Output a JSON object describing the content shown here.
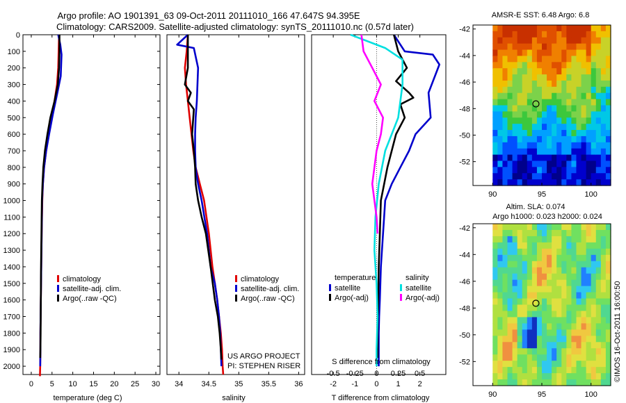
{
  "header": {
    "title_line1": "Argo profile: AO 1901391_63 09-Oct-2011 20111010_166 47.647S 94.395E",
    "title_line2": "Climatology: CARS2009. Satellite-adjusted climatology: synTS_20111010.nc (0.57d later)"
  },
  "chart_data": [
    {
      "type": "line",
      "name": "temperature-profile",
      "xlabel": "temperature (deg C)",
      "ylabel": "",
      "xlim": [
        -2,
        31
      ],
      "ylim": [
        0,
        2050
      ],
      "xticks": [
        0,
        5,
        10,
        15,
        20,
        25,
        30
      ],
      "yticks": [
        0,
        100,
        200,
        300,
        400,
        500,
        600,
        700,
        800,
        900,
        1000,
        1100,
        1200,
        1300,
        1400,
        1500,
        1600,
        1700,
        1800,
        1900,
        2000
      ],
      "legend": [
        "climatology",
        "satellite-adj. clim.",
        "Argo(..raw -QC)"
      ],
      "legend_colors": [
        "#e00000",
        "#0000cc",
        "#000000"
      ],
      "series": [
        {
          "name": "climatology",
          "color": "#e00000",
          "x": [
            6.7,
            6.6,
            6.5,
            6.2,
            5.6,
            4.9,
            4.2,
            3.6,
            3.1,
            2.8,
            2.65,
            2.5,
            2.4,
            2.35,
            2.3,
            2.25,
            2.2,
            2.2,
            2.15,
            2.1,
            2.1
          ],
          "y": [
            0,
            100,
            200,
            300,
            400,
            500,
            600,
            700,
            800,
            900,
            1000,
            1200,
            1400,
            1500,
            1600,
            1700,
            1800,
            1900,
            2000,
            2050,
            2060
          ]
        },
        {
          "name": "satellite-adj. clim.",
          "color": "#0000cc",
          "x": [
            6.5,
            7.0,
            7.3,
            7.1,
            6.3,
            5.2,
            4.3,
            3.6,
            3.1,
            2.8,
            2.6,
            2.5,
            2.4,
            2.35,
            2.3,
            2.25,
            2.2,
            2.2,
            2.15
          ],
          "y": [
            0,
            60,
            120,
            250,
            350,
            480,
            600,
            700,
            800,
            900,
            1000,
            1200,
            1400,
            1500,
            1600,
            1700,
            1800,
            1900,
            2000
          ]
        },
        {
          "name": "Argo(..raw -QC)",
          "color": "#000000",
          "x": [
            6.8,
            6.8,
            6.7,
            6.4,
            5.6,
            4.6,
            3.9,
            3.3,
            2.9,
            2.7,
            2.55,
            2.45,
            2.35,
            2.3,
            2.25,
            2.2,
            2.15
          ],
          "y": [
            0,
            100,
            200,
            300,
            400,
            500,
            600,
            700,
            800,
            900,
            1000,
            1200,
            1400,
            1600,
            1800,
            1900,
            1950
          ]
        }
      ]
    },
    {
      "type": "line",
      "name": "salinity-profile",
      "xlabel": "salinity",
      "xlim": [
        33.8,
        36.1
      ],
      "ylim": [
        0,
        2050
      ],
      "xticks": [
        34,
        34.5,
        35,
        35.5,
        36
      ],
      "legend": [
        "climatology",
        "satellite-adj. clim.",
        "Argo(..raw -QC)"
      ],
      "legend_colors": [
        "#e00000",
        "#0000cc",
        "#000000"
      ],
      "annotation_lines": [
        "US ARGO PROJECT",
        "PI: STEPHEN RISER"
      ],
      "series": [
        {
          "name": "climatology",
          "color": "#e00000",
          "x": [
            34.15,
            34.13,
            34.1,
            34.12,
            34.15,
            34.18,
            34.21,
            34.24,
            34.28,
            34.35,
            34.42,
            34.5,
            34.56,
            34.6,
            34.64,
            34.67,
            34.7,
            34.72,
            34.73,
            34.74
          ],
          "y": [
            0,
            100,
            200,
            300,
            400,
            500,
            600,
            700,
            800,
            900,
            1000,
            1200,
            1400,
            1500,
            1600,
            1700,
            1800,
            1900,
            2000,
            2050
          ]
        },
        {
          "name": "satellite-adj. clim.",
          "color": "#0000cc",
          "x": [
            34.15,
            33.97,
            34.25,
            34.32,
            34.3,
            34.28,
            34.27,
            34.27,
            34.28,
            34.32,
            34.38,
            34.47,
            34.53,
            34.6,
            34.64,
            34.67,
            34.69,
            34.7,
            34.71
          ],
          "y": [
            0,
            60,
            80,
            200,
            400,
            500,
            600,
            700,
            800,
            900,
            1000,
            1200,
            1400,
            1500,
            1600,
            1700,
            1800,
            1900,
            2000
          ]
        },
        {
          "name": "Argo(..raw -QC)",
          "color": "#000000",
          "x": [
            34.15,
            34.15,
            34.15,
            34.1,
            34.2,
            34.15,
            34.25,
            34.22,
            34.25,
            34.27,
            34.28,
            34.32,
            34.38,
            34.45,
            34.53,
            34.6,
            34.65,
            34.68,
            34.7,
            34.71
          ],
          "y": [
            0,
            100,
            200,
            300,
            350,
            400,
            450,
            600,
            700,
            800,
            900,
            1000,
            1100,
            1200,
            1400,
            1600,
            1700,
            1800,
            1900,
            1960
          ]
        }
      ]
    },
    {
      "type": "line",
      "name": "difference-profile",
      "xlabel": "T difference from climatology",
      "xlabel_top": "S difference from climatology",
      "xlim": [
        -3,
        3.2
      ],
      "ylim": [
        0,
        2050
      ],
      "xticks": [
        -2,
        -1,
        0,
        1,
        2
      ],
      "xticks_top": [
        "-0.5",
        "-0.25",
        "0",
        "0.25",
        "0.5"
      ],
      "legend_left_title": "temperature",
      "legend_right_title": "salinity",
      "legend_left": [
        "satellite",
        "Argo(-adj)"
      ],
      "legend_left_colors": [
        "#0000cc",
        "#000000"
      ],
      "legend_right": [
        "satellite",
        "Argo(-adj)"
      ],
      "legend_right_colors": [
        "#00e0e0",
        "#ff00ff"
      ],
      "series": [
        {
          "name": "satellite",
          "group": "temperature",
          "color": "#0000cc",
          "x": [
            0.8,
            1.3,
            2.6,
            2.9,
            2.4,
            2.5,
            1.8,
            1.5,
            1.1,
            0.7,
            0.4,
            0.3,
            0.2,
            0.15,
            0.12,
            0.1,
            0.1,
            0.1
          ],
          "y": [
            0,
            100,
            120,
            180,
            350,
            500,
            600,
            700,
            800,
            900,
            1000,
            1200,
            1400,
            1600,
            1700,
            1800,
            1900,
            2000
          ]
        },
        {
          "name": "Argo(-adj)",
          "group": "temperature",
          "color": "#000000",
          "x": [
            0.8,
            1.0,
            1.4,
            0.9,
            1.5,
            1.7,
            1.1,
            1.3,
            0.9,
            0.5,
            0.35,
            0.2,
            0.15,
            0.1,
            0.08,
            0.05,
            0.05
          ],
          "y": [
            0,
            100,
            200,
            280,
            350,
            380,
            420,
            500,
            600,
            800,
            900,
            1000,
            1200,
            1400,
            1600,
            1800,
            1950
          ]
        },
        {
          "name": "satellite",
          "group": "salinity",
          "color": "#00e0e0",
          "x": [
            -1.2,
            0.4,
            1.2,
            1.2,
            1.0,
            0.7,
            0.4,
            0.1,
            -0.05,
            -0.1,
            0.0,
            0.05,
            0.0,
            0.0
          ],
          "y": [
            0,
            80,
            150,
            300,
            500,
            600,
            700,
            900,
            1100,
            1300,
            1500,
            1700,
            1900,
            2000
          ]
        },
        {
          "name": "Argo(-adj)",
          "group": "salinity",
          "color": "#ff00ff",
          "x": [
            -0.7,
            -0.6,
            -0.2,
            0.2,
            -0.1,
            0.3,
            0.2,
            0.0,
            -0.1,
            -0.2,
            -0.1,
            0.0,
            0.05
          ],
          "y": [
            0,
            100,
            200,
            300,
            400,
            500,
            600,
            700,
            800,
            900,
            1000,
            1100,
            1200
          ]
        }
      ]
    }
  ],
  "maps": {
    "sst": {
      "title": "AMSR-E SST: 6.48 Argo: 6.8",
      "lon_ticks": [
        90,
        95,
        100
      ],
      "lat_ticks": [
        -42,
        -44,
        -46,
        -48,
        -50,
        -52
      ],
      "lon_range": [
        88,
        102
      ],
      "lat_range": [
        -53.8,
        -41.7
      ],
      "no_data_lon_max": 90,
      "float_position": [
        94.395,
        -47.647
      ],
      "palette": [
        "#00008b",
        "#0000cd",
        "#0050ff",
        "#00a0ff",
        "#00c8e6",
        "#3cc83c",
        "#7cd24a",
        "#c8d228",
        "#f0c000",
        "#f08000",
        "#e05000",
        "#c83000"
      ]
    },
    "sla": {
      "title_line1": "Altim. SLA: 0.074",
      "title_line2": "Argo h1000: 0.023 h2000: 0.024",
      "lon_ticks": [
        90,
        95,
        100
      ],
      "lat_ticks": [
        -42,
        -44,
        -46,
        -48,
        -50,
        -52
      ],
      "lon_range": [
        88,
        102
      ],
      "lat_range": [
        -53.8,
        -41.7
      ],
      "no_data_lon_max": 90,
      "float_position": [
        94.395,
        -47.647
      ],
      "palette": [
        "#1030c0",
        "#2080ff",
        "#30c8f0",
        "#50d890",
        "#70e060",
        "#b0e040",
        "#e0e040",
        "#f0c840",
        "#f09040"
      ]
    }
  },
  "footer": {
    "stamp": "©IMOS 16-Oct-2011 16:00:50"
  }
}
